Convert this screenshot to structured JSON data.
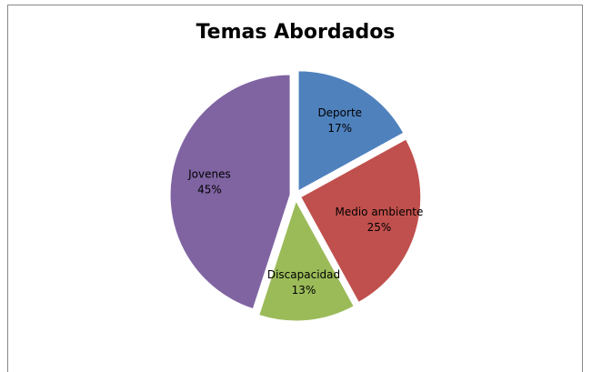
{
  "chart_data": {
    "type": "pie",
    "title": "Temas Abordados",
    "categories": [
      "Deporte",
      "Medio ambiente",
      "Discapacidad",
      "Jovenes"
    ],
    "values": [
      17,
      25,
      13,
      45
    ],
    "value_labels": [
      "17%",
      "25%",
      "13%",
      "45%"
    ],
    "colors": [
      "#4f81bd",
      "#c0504d",
      "#9bbb59",
      "#8064a2"
    ]
  }
}
